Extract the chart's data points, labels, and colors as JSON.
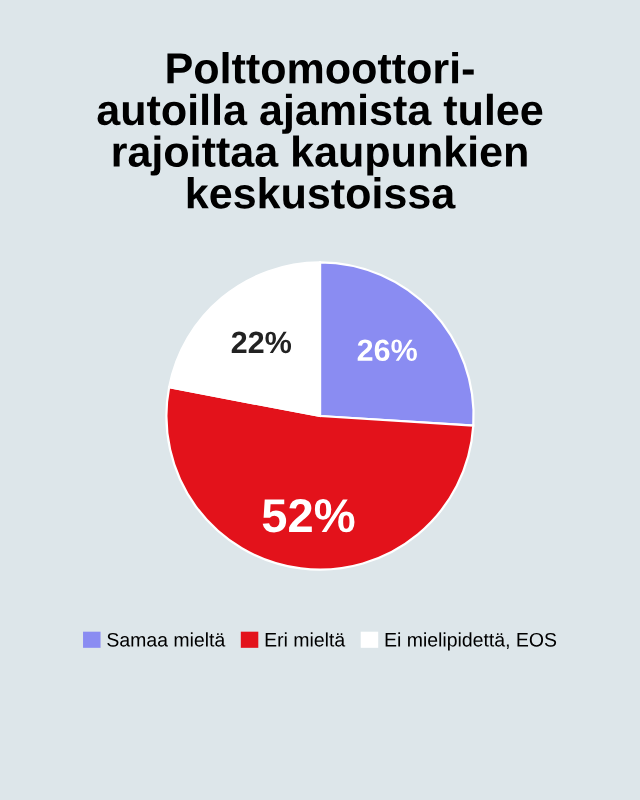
{
  "chart_data": {
    "type": "pie",
    "title": "Polttomoottori-\nautoilla ajamista tulee\nrajoittaa kaupunkien\nkeskustoissa",
    "categories": [
      "Samaa mieltä",
      "Eri mieltä",
      "Ei mielipidettä, EOS"
    ],
    "values": [
      26,
      52,
      22
    ],
    "colors": [
      "#8a8cf2",
      "#e3121b",
      "#ffffff"
    ],
    "value_labels": [
      "26%",
      "52%",
      "22%"
    ],
    "legend": "bottom"
  }
}
